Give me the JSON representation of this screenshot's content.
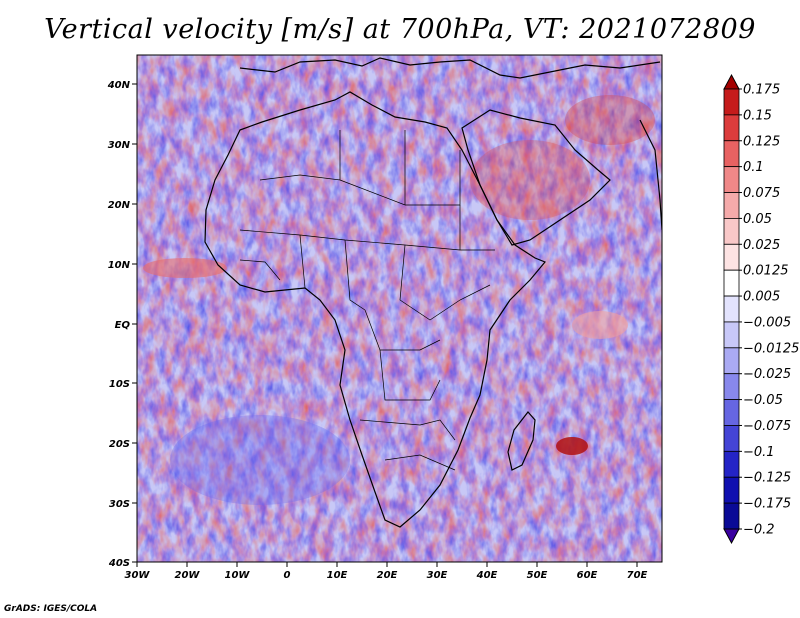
{
  "title": "Vertical velocity [m/s] at 700hPa, VT: 2021072809",
  "credit": "GrADS: IGES/COLA",
  "map": {
    "lon_range": [
      -30,
      75
    ],
    "lat_range": [
      -40,
      45
    ],
    "x_ticks": [
      "30W",
      "20W",
      "10W",
      "0",
      "10E",
      "20E",
      "30E",
      "40E",
      "50E",
      "60E",
      "70E"
    ],
    "y_ticks": [
      "40N",
      "30N",
      "20N",
      "10N",
      "EQ",
      "10S",
      "20S",
      "30S",
      "40S"
    ],
    "field_colors": {
      "positive": "#e05a5a",
      "negative": "#5a5ae6",
      "neutral": "#ffffff"
    }
  },
  "colorbar": {
    "labels": [
      "0.175",
      "0.15",
      "0.125",
      "0.1",
      "0.075",
      "0.05",
      "0.025",
      "0.0125",
      "0.005",
      "−0.005",
      "−0.0125",
      "−0.025",
      "−0.05",
      "−0.075",
      "−0.1",
      "−0.125",
      "−0.175",
      "−0.2"
    ],
    "colors": [
      "#a40000",
      "#c51b1b",
      "#dc3c3c",
      "#e86262",
      "#f08888",
      "#f5aaaa",
      "#f9c8c8",
      "#fde3e3",
      "#ffffff",
      "#e3e3fd",
      "#c8c8f8",
      "#aaaaf3",
      "#8888ec",
      "#6666e2",
      "#4444d6",
      "#2424c6",
      "#1010b0",
      "#0a0a96",
      "#3a00a0"
    ]
  }
}
